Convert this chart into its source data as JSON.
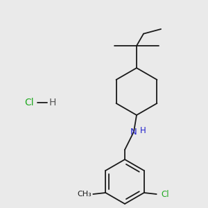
{
  "background_color": "#eaeaea",
  "line_color": "#1a1a1a",
  "N_color": "#2222cc",
  "Cl_color": "#22aa22",
  "H_color": "#555555",
  "line_width": 1.3,
  "figsize": [
    3.0,
    3.0
  ],
  "dpi": 100,
  "salt_Cl": "Cl",
  "salt_dash": "—",
  "salt_H": "H"
}
